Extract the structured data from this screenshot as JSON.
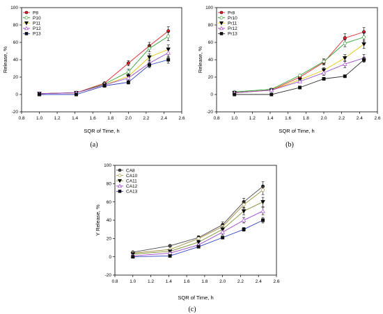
{
  "chart_data": [
    {
      "type": "line",
      "panel_label": "(a)",
      "xlabel": "SQR of Time, h",
      "ylabel": "Release, %",
      "xlim": [
        0.8,
        2.6
      ],
      "ylim": [
        -20,
        100
      ],
      "xticks": [
        "0.8",
        "1.0",
        "1.2",
        "1.4",
        "1.6",
        "1.8",
        "2.0",
        "2.2",
        "2.4",
        "2.6"
      ],
      "yticks": [
        "-20",
        "0",
        "20",
        "40",
        "60",
        "80",
        "100"
      ],
      "legend_position": "top-left",
      "x": [
        1.0,
        1.414,
        1.732,
        2.0,
        2.236,
        2.449
      ],
      "series": [
        {
          "name": "P8",
          "color": "#e8202a",
          "marker": "filled-circle",
          "values": [
            1,
            2,
            13,
            36,
            56,
            73
          ],
          "errors": [
            0.5,
            0.5,
            1,
            3,
            4,
            5
          ]
        },
        {
          "name": "P10",
          "color": "#2ca02c",
          "marker": "open-circle",
          "values": [
            1,
            2,
            12,
            26,
            53,
            67
          ],
          "errors": [
            0.5,
            0.5,
            1,
            3,
            4,
            5
          ]
        },
        {
          "name": "P11",
          "color": "#e6c200",
          "marker": "filled-triangle",
          "values": [
            1,
            2,
            11,
            21,
            43,
            52
          ],
          "errors": [
            0.5,
            0.5,
            1,
            3,
            4,
            5
          ]
        },
        {
          "name": "P12",
          "color": "#9a3fc9",
          "marker": "open-triangle",
          "values": [
            1,
            2,
            11,
            19,
            36,
            48
          ],
          "errors": [
            0.5,
            0.5,
            1,
            3,
            4,
            5
          ]
        },
        {
          "name": "P13",
          "color": "#2d3fbf",
          "marker": "filled-square",
          "values": [
            0,
            0,
            10,
            14,
            34,
            40
          ],
          "errors": [
            0.5,
            0.5,
            1,
            2,
            3,
            4
          ]
        }
      ]
    },
    {
      "type": "line",
      "panel_label": "(b)",
      "xlabel": "SQR of Time, h",
      "ylabel": "Release, %",
      "xlim": [
        0.8,
        2.6
      ],
      "ylim": [
        -20,
        100
      ],
      "xticks": [
        "0.8",
        "1.0",
        "1.2",
        "1.4",
        "1.6",
        "1.8",
        "2.0",
        "2.2",
        "2.4",
        "2.6"
      ],
      "yticks": [
        "-20",
        "0",
        "20",
        "40",
        "60",
        "80",
        "100"
      ],
      "legend_position": "top-left",
      "x": [
        1.0,
        1.414,
        1.732,
        2.0,
        2.236,
        2.449
      ],
      "series": [
        {
          "name": "Pr8",
          "color": "#e8202a",
          "marker": "filled-circle",
          "values": [
            2,
            5,
            20,
            37,
            65,
            72
          ],
          "errors": [
            0.5,
            0.5,
            1,
            3,
            5,
            5
          ]
        },
        {
          "name": "Pr10",
          "color": "#2ca02c",
          "marker": "open-circle",
          "values": [
            3,
            6,
            22,
            38,
            59,
            66
          ],
          "errors": [
            0.5,
            0.5,
            1,
            3,
            4,
            5
          ]
        },
        {
          "name": "Pr11",
          "color": "#e6c200",
          "marker": "filled-triangle",
          "values": [
            2,
            5,
            17,
            28,
            42,
            58
          ],
          "errors": [
            0.5,
            0.5,
            1,
            3,
            4,
            5
          ]
        },
        {
          "name": "Pr12",
          "color": "#9a3fc9",
          "marker": "open-triangle",
          "values": [
            2,
            5,
            15,
            25,
            35,
            42
          ],
          "errors": [
            0.5,
            0.5,
            1,
            3,
            4,
            4
          ]
        },
        {
          "name": "Pr13",
          "color": "#2b2b2b",
          "marker": "filled-square",
          "values": [
            0,
            0,
            8,
            18,
            21,
            40
          ],
          "errors": [
            0.5,
            0.5,
            1,
            1,
            1,
            3
          ]
        }
      ]
    },
    {
      "type": "line",
      "panel_label": "(c)",
      "xlabel": "SQR of Time, h",
      "ylabel": "Y Release, %",
      "xlim": [
        0.8,
        2.6
      ],
      "ylim": [
        -20,
        100
      ],
      "xticks": [
        "0.8",
        "1.0",
        "1.2",
        "1.4",
        "1.6",
        "1.8",
        "2.0",
        "2.2",
        "2.4",
        "2.6"
      ],
      "yticks": [
        "-20",
        "0",
        "20",
        "40",
        "60",
        "80",
        "100"
      ],
      "legend_position": "top-left",
      "x": [
        1.0,
        1.414,
        1.732,
        2.0,
        2.236,
        2.449
      ],
      "series": [
        {
          "name": "CA8",
          "color": "#4a4a4a",
          "marker": "filled-circle",
          "values": [
            5,
            12,
            21,
            35,
            60,
            77
          ],
          "errors": [
            0.5,
            1,
            2,
            3,
            4,
            5
          ]
        },
        {
          "name": "CA10",
          "color": "#a08f3c",
          "marker": "open-circle",
          "values": [
            4,
            8,
            20,
            33,
            57,
            73
          ],
          "errors": [
            0.5,
            1,
            2,
            3,
            4,
            5
          ]
        },
        {
          "name": "CA11",
          "color": "#7b8e2a",
          "marker": "filled-triangle",
          "values": [
            3,
            6,
            16,
            30,
            50,
            60
          ],
          "errors": [
            0.5,
            1,
            2,
            3,
            4,
            5
          ]
        },
        {
          "name": "CA12",
          "color": "#9a3fc9",
          "marker": "open-triangle",
          "values": [
            1,
            4,
            13,
            27,
            40,
            50
          ],
          "errors": [
            0.5,
            1,
            1,
            3,
            3,
            4
          ]
        },
        {
          "name": "CA13",
          "color": "#2d3fbf",
          "marker": "filled-square",
          "values": [
            0,
            1,
            11,
            21,
            30,
            40
          ],
          "errors": [
            0.5,
            0.5,
            1,
            1,
            2,
            3
          ]
        }
      ]
    }
  ]
}
